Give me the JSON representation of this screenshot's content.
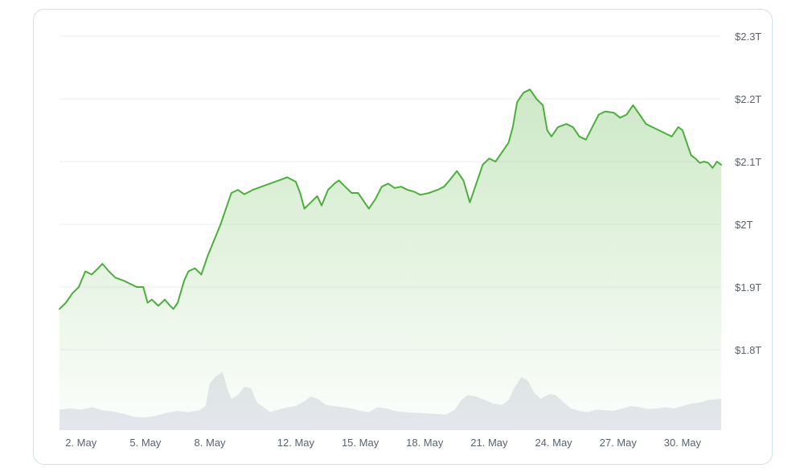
{
  "chart_data": {
    "type": "area",
    "ylim": [
      1.8,
      2.3
    ],
    "y_ticks": [
      "$2.3T",
      "$2.2T",
      "$2.1T",
      "$2T",
      "$1.9T",
      "$1.8T"
    ],
    "y_tick_values": [
      2.3,
      2.2,
      2.1,
      2.0,
      1.9,
      1.8
    ],
    "x_ticks": [
      "2. May",
      "5. May",
      "8. May",
      "12. May",
      "15. May",
      "18. May",
      "21. May",
      "24. May",
      "27. May",
      "30. May"
    ],
    "x_tick_days": [
      2,
      5,
      8,
      12,
      15,
      18,
      21,
      24,
      27,
      30
    ],
    "xlim_days": [
      1.0,
      31.8
    ],
    "grid": true,
    "line_color": "#4caf3d",
    "fill_color": "#7cc46a",
    "volume_color": "#e6e7ee",
    "series": [
      {
        "points": [
          [
            1.0,
            1.865
          ],
          [
            1.3,
            1.875
          ],
          [
            1.6,
            1.89
          ],
          [
            1.9,
            1.9
          ],
          [
            2.2,
            1.925
          ],
          [
            2.5,
            1.92
          ],
          [
            2.8,
            1.93
          ],
          [
            3.0,
            1.937
          ],
          [
            3.3,
            1.925
          ],
          [
            3.6,
            1.915
          ],
          [
            4.0,
            1.91
          ],
          [
            4.3,
            1.905
          ],
          [
            4.6,
            1.9
          ],
          [
            4.9,
            1.9
          ],
          [
            5.1,
            1.875
          ],
          [
            5.3,
            1.88
          ],
          [
            5.6,
            1.87
          ],
          [
            5.9,
            1.88
          ],
          [
            6.1,
            1.872
          ],
          [
            6.3,
            1.865
          ],
          [
            6.5,
            1.875
          ],
          [
            6.8,
            1.91
          ],
          [
            7.0,
            1.925
          ],
          [
            7.3,
            1.93
          ],
          [
            7.6,
            1.92
          ],
          [
            7.9,
            1.95
          ],
          [
            8.2,
            1.975
          ],
          [
            8.5,
            2.0
          ],
          [
            8.8,
            2.03
          ],
          [
            9.0,
            2.05
          ],
          [
            9.3,
            2.055
          ],
          [
            9.6,
            2.048
          ],
          [
            10.0,
            2.055
          ],
          [
            10.4,
            2.06
          ],
          [
            10.8,
            2.065
          ],
          [
            11.2,
            2.07
          ],
          [
            11.6,
            2.075
          ],
          [
            12.0,
            2.068
          ],
          [
            12.2,
            2.05
          ],
          [
            12.4,
            2.025
          ],
          [
            12.7,
            2.035
          ],
          [
            13.0,
            2.045
          ],
          [
            13.2,
            2.03
          ],
          [
            13.5,
            2.055
          ],
          [
            13.8,
            2.065
          ],
          [
            14.0,
            2.07
          ],
          [
            14.3,
            2.06
          ],
          [
            14.6,
            2.05
          ],
          [
            14.9,
            2.05
          ],
          [
            15.2,
            2.035
          ],
          [
            15.4,
            2.025
          ],
          [
            15.7,
            2.04
          ],
          [
            16.0,
            2.06
          ],
          [
            16.3,
            2.065
          ],
          [
            16.6,
            2.058
          ],
          [
            16.9,
            2.06
          ],
          [
            17.2,
            2.055
          ],
          [
            17.5,
            2.052
          ],
          [
            17.8,
            2.047
          ],
          [
            18.2,
            2.05
          ],
          [
            18.6,
            2.055
          ],
          [
            18.9,
            2.06
          ],
          [
            19.2,
            2.072
          ],
          [
            19.5,
            2.085
          ],
          [
            19.8,
            2.07
          ],
          [
            20.1,
            2.035
          ],
          [
            20.4,
            2.065
          ],
          [
            20.7,
            2.095
          ],
          [
            21.0,
            2.105
          ],
          [
            21.3,
            2.1
          ],
          [
            21.6,
            2.115
          ],
          [
            21.9,
            2.13
          ],
          [
            22.1,
            2.155
          ],
          [
            22.3,
            2.195
          ],
          [
            22.6,
            2.21
          ],
          [
            22.9,
            2.215
          ],
          [
            23.2,
            2.2
          ],
          [
            23.5,
            2.19
          ],
          [
            23.7,
            2.15
          ],
          [
            23.9,
            2.14
          ],
          [
            24.2,
            2.155
          ],
          [
            24.6,
            2.16
          ],
          [
            24.9,
            2.155
          ],
          [
            25.2,
            2.14
          ],
          [
            25.5,
            2.135
          ],
          [
            25.8,
            2.155
          ],
          [
            26.1,
            2.175
          ],
          [
            26.4,
            2.18
          ],
          [
            26.8,
            2.178
          ],
          [
            27.1,
            2.17
          ],
          [
            27.4,
            2.175
          ],
          [
            27.7,
            2.19
          ],
          [
            28.0,
            2.175
          ],
          [
            28.3,
            2.16
          ],
          [
            28.6,
            2.155
          ],
          [
            28.9,
            2.15
          ],
          [
            29.2,
            2.145
          ],
          [
            29.5,
            2.14
          ],
          [
            29.8,
            2.155
          ],
          [
            30.0,
            2.15
          ],
          [
            30.2,
            2.13
          ],
          [
            30.4,
            2.11
          ],
          [
            30.6,
            2.105
          ],
          [
            30.8,
            2.098
          ],
          [
            31.0,
            2.1
          ],
          [
            31.2,
            2.098
          ],
          [
            31.4,
            2.09
          ],
          [
            31.6,
            2.1
          ],
          [
            31.8,
            2.095
          ]
        ]
      }
    ],
    "volume": [
      [
        1.0,
        0.34
      ],
      [
        1.5,
        0.36
      ],
      [
        2.0,
        0.34
      ],
      [
        2.5,
        0.38
      ],
      [
        3.0,
        0.33
      ],
      [
        3.5,
        0.31
      ],
      [
        4.0,
        0.27
      ],
      [
        4.5,
        0.22
      ],
      [
        5.0,
        0.21
      ],
      [
        5.5,
        0.24
      ],
      [
        6.0,
        0.29
      ],
      [
        6.5,
        0.32
      ],
      [
        7.0,
        0.3
      ],
      [
        7.5,
        0.33
      ],
      [
        7.8,
        0.4
      ],
      [
        8.0,
        0.78
      ],
      [
        8.3,
        0.9
      ],
      [
        8.6,
        0.96
      ],
      [
        8.8,
        0.7
      ],
      [
        9.0,
        0.52
      ],
      [
        9.3,
        0.58
      ],
      [
        9.6,
        0.72
      ],
      [
        9.9,
        0.7
      ],
      [
        10.2,
        0.46
      ],
      [
        10.5,
        0.38
      ],
      [
        10.8,
        0.3
      ],
      [
        11.2,
        0.34
      ],
      [
        11.6,
        0.38
      ],
      [
        12.0,
        0.4
      ],
      [
        12.4,
        0.48
      ],
      [
        12.7,
        0.56
      ],
      [
        13.0,
        0.52
      ],
      [
        13.4,
        0.42
      ],
      [
        13.8,
        0.4
      ],
      [
        14.2,
        0.38
      ],
      [
        14.6,
        0.36
      ],
      [
        15.0,
        0.32
      ],
      [
        15.4,
        0.3
      ],
      [
        15.8,
        0.38
      ],
      [
        16.2,
        0.36
      ],
      [
        16.6,
        0.32
      ],
      [
        17.0,
        0.3
      ],
      [
        17.5,
        0.29
      ],
      [
        18.0,
        0.28
      ],
      [
        18.5,
        0.27
      ],
      [
        19.0,
        0.26
      ],
      [
        19.4,
        0.34
      ],
      [
        19.7,
        0.5
      ],
      [
        20.0,
        0.58
      ],
      [
        20.4,
        0.56
      ],
      [
        20.8,
        0.5
      ],
      [
        21.2,
        0.44
      ],
      [
        21.6,
        0.42
      ],
      [
        21.9,
        0.5
      ],
      [
        22.2,
        0.72
      ],
      [
        22.5,
        0.88
      ],
      [
        22.8,
        0.82
      ],
      [
        23.1,
        0.62
      ],
      [
        23.4,
        0.52
      ],
      [
        23.8,
        0.6
      ],
      [
        24.1,
        0.58
      ],
      [
        24.4,
        0.48
      ],
      [
        24.8,
        0.36
      ],
      [
        25.2,
        0.32
      ],
      [
        25.6,
        0.3
      ],
      [
        26.0,
        0.34
      ],
      [
        26.4,
        0.33
      ],
      [
        26.8,
        0.32
      ],
      [
        27.2,
        0.36
      ],
      [
        27.6,
        0.4
      ],
      [
        28.0,
        0.38
      ],
      [
        28.4,
        0.35
      ],
      [
        28.8,
        0.36
      ],
      [
        29.2,
        0.38
      ],
      [
        29.6,
        0.36
      ],
      [
        30.0,
        0.4
      ],
      [
        30.4,
        0.44
      ],
      [
        30.8,
        0.46
      ],
      [
        31.2,
        0.5
      ],
      [
        31.8,
        0.52
      ]
    ]
  }
}
